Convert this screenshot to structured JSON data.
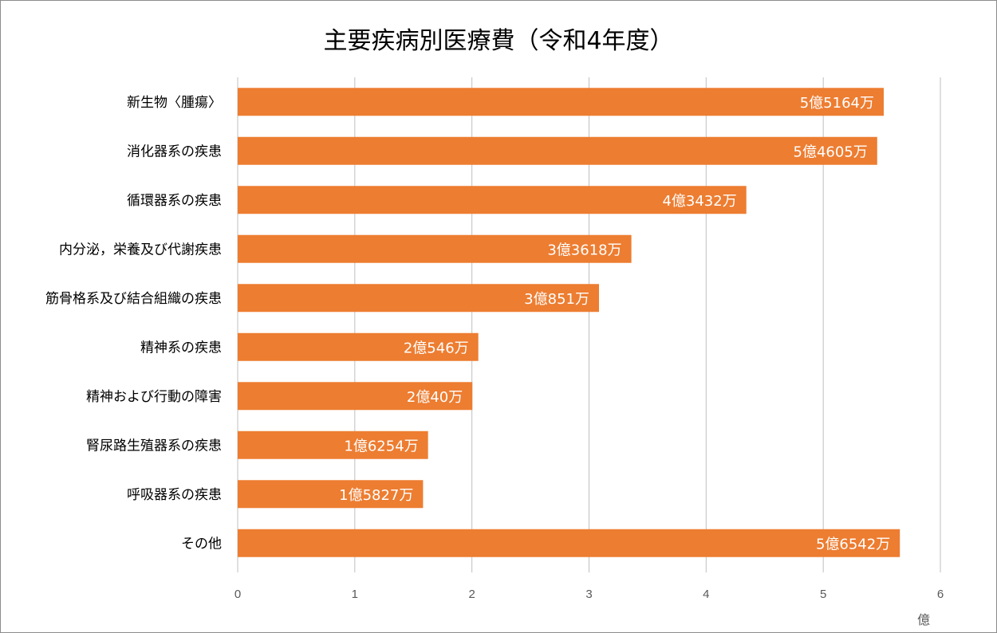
{
  "chart_data": {
    "type": "bar",
    "orientation": "horizontal",
    "title": "主要疾病別医療費（令和4年度）",
    "categories": [
      "新生物〈腫瘍〉",
      "消化器系の疾患",
      "循環器系の疾患",
      "内分泌，栄養及び代謝疾患",
      "筋骨格系及び結合組織の疾患",
      "精神系の疾患",
      "精神および行動の障害",
      "腎尿路生殖器系の疾患",
      "呼吸器系の疾患",
      "その他"
    ],
    "values": [
      5.5164,
      5.4605,
      4.3432,
      3.3618,
      3.0851,
      2.0546,
      2.004,
      1.6254,
      1.5827,
      5.6542
    ],
    "data_labels": [
      "5億5164万",
      "5億4605万",
      "4億3432万",
      "3億3618万",
      "3億851万",
      "2億546万",
      "2億40万",
      "1億6254万",
      "1億5827万",
      "5億6542万"
    ],
    "xlim": [
      0,
      6
    ],
    "x_ticks": [
      "0",
      "1",
      "2",
      "3",
      "4",
      "5",
      "6"
    ],
    "x_unit": "億",
    "grid": true,
    "legend": "none",
    "bar_color": "#ED7D31"
  }
}
